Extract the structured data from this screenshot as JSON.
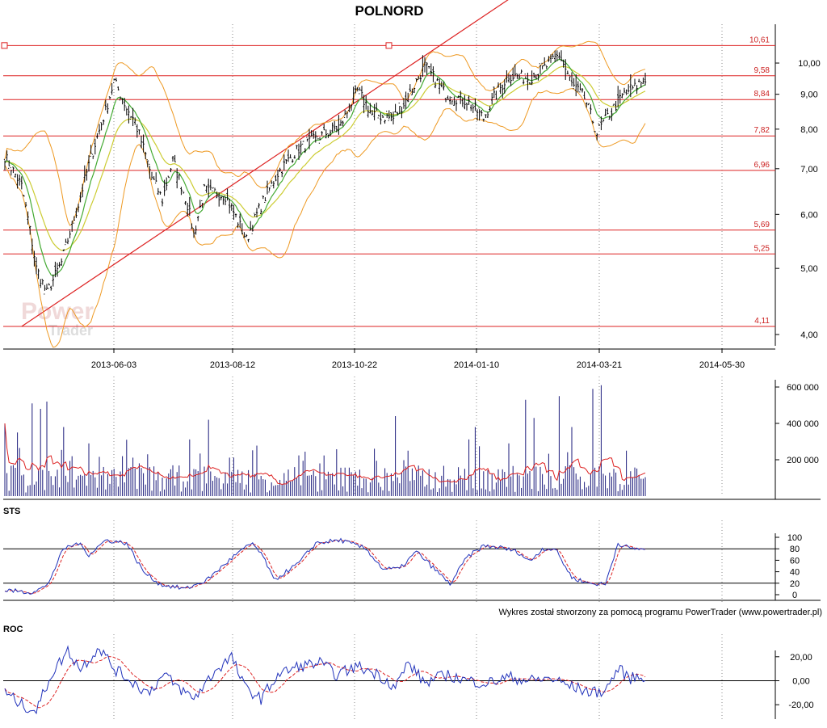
{
  "chart_data": {
    "type": "candlestick-multi-panel",
    "title": "POLNORD",
    "footer": "Wykres został stworzony za pomocą programu PowerTrader (www.powertrader.pl)",
    "watermark": {
      "line1": "Power",
      "line2": "Trader"
    },
    "x_axis": {
      "tick_labels": [
        "2013-06-03",
        "2013-08-12",
        "2013-10-22",
        "2014-01-10",
        "2014-03-21",
        "2014-05-30"
      ],
      "grid": true
    },
    "price_panel": {
      "scale": "log",
      "y_ticks": [
        "4,00",
        "5,00",
        "6,00",
        "7,00",
        "8,00",
        "9,00",
        "10,00"
      ],
      "y_tick_values": [
        4,
        5,
        6,
        7,
        8,
        9,
        10
      ],
      "ylim": [
        3.85,
        11.4
      ],
      "levels": [
        {
          "value": 10.61,
          "label": "10,61"
        },
        {
          "value": 9.58,
          "label": "9,58"
        },
        {
          "value": 8.84,
          "label": "8,84"
        },
        {
          "value": 7.82,
          "label": "7,82"
        },
        {
          "value": 6.96,
          "label": "6,96"
        },
        {
          "value": 5.69,
          "label": "5,69"
        },
        {
          "value": 5.25,
          "label": "5,25"
        },
        {
          "value": 4.11,
          "label": "4,11"
        }
      ],
      "trendline": {
        "from": {
          "bar": 8,
          "value": 4.11
        },
        "to": {
          "bar": 184,
          "value": 9.5
        }
      },
      "anchors": [
        {
          "x": [
            0,
            180
          ],
          "y": [
            4.38,
            9.62
          ]
        },
        {
          "x": [
            0,
            120
          ],
          "y": [
            7.4,
            5.5
          ]
        }
      ],
      "close_keypoints": [
        [
          0,
          7.3
        ],
        [
          8,
          6.6
        ],
        [
          15,
          5.0
        ],
        [
          20,
          4.6
        ],
        [
          27,
          5.1
        ],
        [
          35,
          6.2
        ],
        [
          48,
          8.5
        ],
        [
          52,
          9.4
        ],
        [
          58,
          8.6
        ],
        [
          62,
          8.2
        ],
        [
          70,
          6.8
        ],
        [
          75,
          6.3
        ],
        [
          80,
          7.2
        ],
        [
          87,
          6.2
        ],
        [
          90,
          5.6
        ],
        [
          95,
          6.5
        ],
        [
          105,
          6.4
        ],
        [
          115,
          5.5
        ],
        [
          120,
          6.0
        ],
        [
          130,
          6.9
        ],
        [
          140,
          7.5
        ],
        [
          160,
          8.1
        ],
        [
          168,
          9.1
        ],
        [
          175,
          8.4
        ],
        [
          185,
          8.3
        ],
        [
          192,
          8.9
        ],
        [
          200,
          9.9
        ],
        [
          210,
          9.0
        ],
        [
          220,
          8.8
        ],
        [
          228,
          8.3
        ],
        [
          232,
          8.8
        ],
        [
          240,
          9.6
        ],
        [
          250,
          9.5
        ],
        [
          258,
          9.9
        ],
        [
          264,
          10.3
        ],
        [
          270,
          9.3
        ],
        [
          276,
          8.9
        ],
        [
          282,
          7.9
        ],
        [
          290,
          8.6
        ],
        [
          296,
          9.1
        ],
        [
          300,
          9.2
        ],
        [
          305,
          9.5
        ]
      ]
    },
    "volume_panel": {
      "y_ticks": [
        "200 000",
        "400 000",
        "600 000"
      ],
      "y_tick_values": [
        200000,
        400000,
        600000
      ],
      "ylim": [
        0,
        640000
      ],
      "spikes": [
        [
          0,
          400000
        ],
        [
          6,
          350000
        ],
        [
          13,
          510000
        ],
        [
          17,
          480000
        ],
        [
          20,
          520000
        ],
        [
          28,
          380000
        ],
        [
          40,
          290000
        ],
        [
          58,
          310000
        ],
        [
          68,
          230000
        ],
        [
          97,
          420000
        ],
        [
          150,
          180000
        ],
        [
          186,
          440000
        ],
        [
          192,
          250000
        ],
        [
          224,
          380000
        ],
        [
          240,
          290000
        ],
        [
          248,
          530000
        ],
        [
          252,
          430000
        ],
        [
          264,
          550000
        ],
        [
          270,
          380000
        ],
        [
          280,
          590000
        ],
        [
          284,
          610000
        ],
        [
          296,
          250000
        ]
      ]
    },
    "sts_panel": {
      "label": "STS",
      "y_ticks": [
        "0",
        "20",
        "40",
        "60",
        "80",
        "100"
      ],
      "y_tick_values": [
        0,
        20,
        40,
        60,
        80,
        100
      ],
      "ylim": [
        0,
        100
      ],
      "h_lines": [
        20,
        80
      ],
      "keypoints": [
        [
          0,
          8
        ],
        [
          12,
          4
        ],
        [
          20,
          15
        ],
        [
          28,
          80
        ],
        [
          35,
          90
        ],
        [
          40,
          70
        ],
        [
          48,
          95
        ],
        [
          58,
          90
        ],
        [
          66,
          40
        ],
        [
          74,
          18
        ],
        [
          86,
          10
        ],
        [
          96,
          25
        ],
        [
          110,
          70
        ],
        [
          118,
          90
        ],
        [
          124,
          60
        ],
        [
          128,
          25
        ],
        [
          140,
          55
        ],
        [
          148,
          90
        ],
        [
          160,
          95
        ],
        [
          172,
          80
        ],
        [
          180,
          45
        ],
        [
          188,
          45
        ],
        [
          196,
          75
        ],
        [
          206,
          40
        ],
        [
          212,
          18
        ],
        [
          220,
          65
        ],
        [
          228,
          85
        ],
        [
          236,
          82
        ],
        [
          244,
          75
        ],
        [
          250,
          58
        ],
        [
          256,
          80
        ],
        [
          262,
          80
        ],
        [
          270,
          30
        ],
        [
          278,
          20
        ],
        [
          286,
          18
        ],
        [
          292,
          90
        ],
        [
          298,
          80
        ],
        [
          305,
          80
        ]
      ]
    },
    "roc_panel": {
      "label": "ROC",
      "y_ticks": [
        "-20,00",
        "0,00",
        "20,00"
      ],
      "y_tick_values": [
        -20,
        0,
        20
      ],
      "ylim": [
        -32,
        32
      ],
      "h_lines": [
        0
      ],
      "keypoints": [
        [
          0,
          -10
        ],
        [
          8,
          -20
        ],
        [
          15,
          -25
        ],
        [
          22,
          5
        ],
        [
          30,
          25
        ],
        [
          36,
          10
        ],
        [
          45,
          28
        ],
        [
          52,
          10
        ],
        [
          60,
          0
        ],
        [
          68,
          -10
        ],
        [
          76,
          5
        ],
        [
          82,
          -5
        ],
        [
          90,
          -15
        ],
        [
          100,
          8
        ],
        [
          108,
          20
        ],
        [
          114,
          -5
        ],
        [
          122,
          -15
        ],
        [
          130,
          5
        ],
        [
          140,
          12
        ],
        [
          150,
          15
        ],
        [
          158,
          5
        ],
        [
          168,
          12
        ],
        [
          178,
          5
        ],
        [
          186,
          -5
        ],
        [
          192,
          15
        ],
        [
          200,
          -2
        ],
        [
          210,
          5
        ],
        [
          220,
          0
        ],
        [
          230,
          -2
        ],
        [
          240,
          3
        ],
        [
          250,
          0
        ],
        [
          260,
          2
        ],
        [
          270,
          -5
        ],
        [
          280,
          -10
        ],
        [
          286,
          -8
        ],
        [
          292,
          10
        ],
        [
          298,
          2
        ],
        [
          305,
          4
        ]
      ]
    },
    "colors": {
      "bars": "#000000",
      "trend": "#dd2222",
      "ma_fast": "#44aa33",
      "ma_slow": "#cccc33",
      "bollinger": "#ee9922",
      "volume": "#1a1a7a",
      "volume_ma": "#dd2222",
      "osc_main": "#2233bb",
      "osc_signal": "#dd2222",
      "grid": "#888888"
    }
  }
}
